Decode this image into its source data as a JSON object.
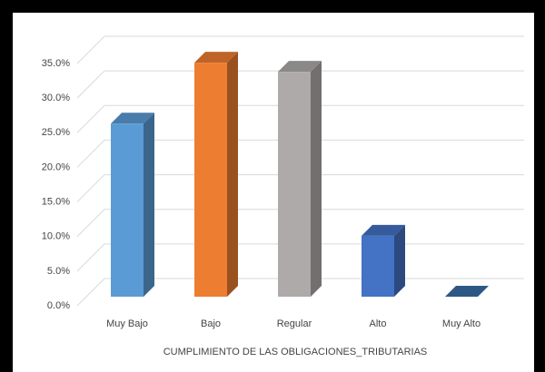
{
  "chart_data": {
    "type": "bar3d",
    "x_label": "CUMPLIMIENTO DE LAS OBLIGACIONES_TRIBUTARIAS",
    "categories": [
      "Muy Bajo",
      "Bajo",
      "Regular",
      "Alto",
      "Muy Alto"
    ],
    "values": [
      25.0,
      33.8,
      32.5,
      8.8,
      0
    ],
    "colors": [
      "#5b9bd5",
      "#ed7d31",
      "#aeaaaa",
      "#4472c4",
      "#3a6ea5"
    ],
    "ylim": [
      0,
      35
    ],
    "yticks": [
      {
        "value": 0,
        "label": "0.0%"
      },
      {
        "value": 5,
        "label": "5.0%"
      },
      {
        "value": 10,
        "label": "10.0%"
      },
      {
        "value": 15,
        "label": "15.0%"
      },
      {
        "value": 20,
        "label": "20.0%"
      },
      {
        "value": 25,
        "label": "25.0%"
      },
      {
        "value": 30,
        "label": "30.0%"
      },
      {
        "value": 35,
        "label": "35.0%"
      }
    ],
    "grid": true
  }
}
